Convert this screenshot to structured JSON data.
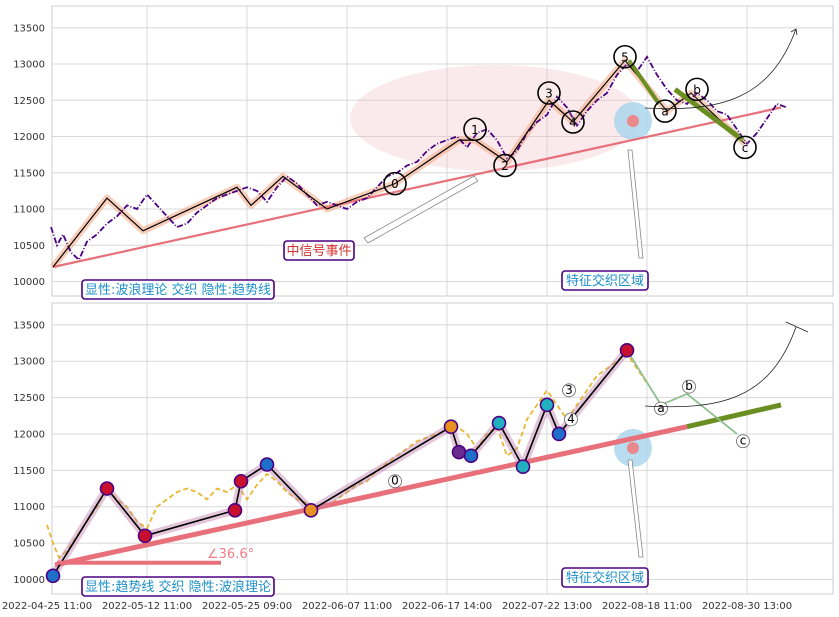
{
  "chart_data": [
    {
      "type": "line",
      "panel": "top",
      "title": "",
      "xlabel": "",
      "ylabel": "",
      "ylim": [
        9800,
        13800
      ],
      "yticks": [
        10000,
        10500,
        11000,
        11500,
        12000,
        12500,
        13000,
        13500
      ],
      "grid": true,
      "series": [
        {
          "style": "price-dashdot",
          "color": "#4b0082",
          "points": [
            [
              0.2,
              10750
            ],
            [
              0.5,
              10500
            ],
            [
              0.8,
              10650
            ],
            [
              1.2,
              10400
            ],
            [
              1.6,
              10300
            ],
            [
              2.0,
              10550
            ],
            [
              2.5,
              10650
            ],
            [
              3.0,
              10800
            ],
            [
              3.5,
              10900
            ],
            [
              4.0,
              11050
            ],
            [
              4.5,
              11000
            ],
            [
              5.0,
              11200
            ],
            [
              5.5,
              11050
            ],
            [
              6.0,
              10900
            ],
            [
              6.5,
              10750
            ],
            [
              7.0,
              10800
            ],
            [
              7.5,
              10950
            ],
            [
              8.0,
              11050
            ],
            [
              8.5,
              11150
            ],
            [
              9.0,
              11200
            ],
            [
              9.5,
              11250
            ],
            [
              10.0,
              11300
            ],
            [
              10.5,
              11250
            ],
            [
              11.0,
              11100
            ],
            [
              11.5,
              11300
            ],
            [
              12.0,
              11450
            ],
            [
              12.5,
              11350
            ],
            [
              13.0,
              11200
            ],
            [
              13.5,
              11050
            ],
            [
              14.0,
              11100
            ],
            [
              14.5,
              11050
            ],
            [
              15.0,
              11000
            ],
            [
              15.5,
              11100
            ],
            [
              16.0,
              11150
            ],
            [
              16.5,
              11300
            ],
            [
              17.0,
              11450
            ],
            [
              17.5,
              11500
            ],
            [
              18.0,
              11600
            ],
            [
              18.5,
              11650
            ],
            [
              19.0,
              11800
            ],
            [
              19.5,
              11900
            ],
            [
              20.0,
              11950
            ],
            [
              20.5,
              12000
            ],
            [
              21.0,
              11850
            ],
            [
              21.5,
              12050
            ],
            [
              22.0,
              12100
            ],
            [
              22.5,
              11950
            ],
            [
              23.0,
              11700
            ],
            [
              23.5,
              11800
            ],
            [
              24.0,
              12050
            ],
            [
              24.5,
              12200
            ],
            [
              25.0,
              12300
            ],
            [
              25.5,
              12550
            ],
            [
              26.0,
              12400
            ],
            [
              26.5,
              12150
            ],
            [
              27.0,
              12350
            ],
            [
              27.5,
              12500
            ],
            [
              28.0,
              12600
            ],
            [
              28.5,
              12850
            ],
            [
              29.0,
              13000
            ],
            [
              29.5,
              12900
            ],
            [
              30.0,
              13100
            ],
            [
              30.5,
              12850
            ],
            [
              31.0,
              12650
            ],
            [
              31.5,
              12500
            ],
            [
              32.0,
              12450
            ],
            [
              32.5,
              12600
            ],
            [
              33.0,
              12500
            ],
            [
              33.5,
              12350
            ],
            [
              34.0,
              12300
            ],
            [
              34.5,
              12100
            ],
            [
              35.0,
              11900
            ],
            [
              35.5,
              12050
            ],
            [
              36.0,
              12250
            ],
            [
              36.5,
              12450
            ],
            [
              37.0,
              12400
            ]
          ]
        },
        {
          "style": "trend-line",
          "color": "#e8707a",
          "points": [
            [
              0.3,
              10200
            ],
            [
              36.7,
              12400
            ]
          ]
        },
        {
          "style": "wave-line",
          "color": "#000000",
          "points": [
            [
              0.3,
              10200
            ],
            [
              3.0,
              11150
            ],
            [
              4.8,
              10700
            ],
            [
              9.5,
              11300
            ],
            [
              10.2,
              11050
            ],
            [
              11.8,
              11450
            ],
            [
              14.0,
              11000
            ],
            [
              17.4,
              11350
            ],
            [
              20.6,
              11950
            ],
            [
              21.4,
              11950
            ],
            [
              23.0,
              11650
            ],
            [
              25.1,
              12500
            ],
            [
              26.3,
              12200
            ],
            [
              28.9,
              13050
            ],
            [
              31.0,
              12350
            ],
            [
              32.2,
              12600
            ],
            [
              34.9,
              11900
            ]
          ]
        }
      ],
      "wave_points": [
        {
          "label": "0",
          "x": 17.4,
          "y": 11350
        },
        {
          "label": "1",
          "x": 21.4,
          "y": 12100
        },
        {
          "label": "2",
          "x": 22.9,
          "y": 11600
        },
        {
          "label": "3",
          "x": 25.1,
          "y": 12600
        },
        {
          "label": "4",
          "x": 26.3,
          "y": 12200
        },
        {
          "label": "5",
          "x": 28.9,
          "y": 13100
        },
        {
          "label": "a",
          "x": 30.9,
          "y": 12350
        },
        {
          "label": "b",
          "x": 32.5,
          "y": 12650
        },
        {
          "label": "c",
          "x": 34.9,
          "y": 11850
        }
      ],
      "annotations": {
        "signal_event": "中信号事件",
        "interlace_zone": "特征交织区域",
        "corner_label": "显性:波浪理论 交织 隐性:趋势线"
      }
    },
    {
      "type": "line",
      "panel": "bottom",
      "title": "",
      "xlabel": "",
      "ylabel": "",
      "ylim": [
        9800,
        13800
      ],
      "yticks": [
        10000,
        10500,
        11000,
        11500,
        12000,
        12500,
        13000,
        13500
      ],
      "grid": true,
      "xticks": [
        "2022-04-25 11:00",
        "2022-05-12 11:00",
        "2022-05-25 09:00",
        "2022-06-07 11:00",
        "2022-06-17 14:00",
        "2022-07-22 13:00",
        "2022-08-18 11:00",
        "2022-08-30 13:00"
      ],
      "series": [
        {
          "style": "price-dashed",
          "color": "#e8b830",
          "points": [
            [
              0.0,
              10750
            ],
            [
              0.3,
              10500
            ],
            [
              0.6,
              10300
            ],
            [
              1.0,
              10400
            ],
            [
              1.5,
              10600
            ],
            [
              2.0,
              10800
            ],
            [
              2.5,
              11000
            ],
            [
              3.0,
              11250
            ],
            [
              3.5,
              11100
            ],
            [
              4.0,
              11000
            ],
            [
              4.5,
              10800
            ],
            [
              5.0,
              10700
            ],
            [
              5.5,
              11000
            ],
            [
              6.0,
              11100
            ],
            [
              6.5,
              11200
            ],
            [
              7.0,
              11250
            ],
            [
              7.5,
              11200
            ],
            [
              8.0,
              11100
            ],
            [
              8.5,
              11250
            ],
            [
              9.0,
              11200
            ],
            [
              9.5,
              11300
            ],
            [
              10.0,
              11100
            ],
            [
              10.5,
              11300
            ],
            [
              11.0,
              11450
            ],
            [
              11.5,
              11350
            ],
            [
              12.0,
              11200
            ],
            [
              12.5,
              11100
            ],
            [
              13.0,
              11050
            ],
            [
              13.5,
              11000
            ],
            [
              14.0,
              11000
            ],
            [
              14.5,
              11100
            ],
            [
              15.0,
              11200
            ],
            [
              15.5,
              11300
            ],
            [
              16.0,
              11350
            ],
            [
              16.5,
              11500
            ],
            [
              17.0,
              11600
            ],
            [
              17.5,
              11700
            ],
            [
              18.0,
              11800
            ],
            [
              18.5,
              11900
            ],
            [
              19.0,
              11950
            ],
            [
              19.5,
              12000
            ],
            [
              20.0,
              12050
            ],
            [
              20.5,
              12100
            ],
            [
              21.0,
              12000
            ],
            [
              21.5,
              11800
            ],
            [
              22.0,
              12000
            ],
            [
              22.5,
              12100
            ],
            [
              23.0,
              11700
            ],
            [
              23.5,
              11800
            ],
            [
              24.0,
              12200
            ],
            [
              24.5,
              12400
            ],
            [
              25.0,
              12600
            ],
            [
              25.5,
              12400
            ],
            [
              26.0,
              12200
            ],
            [
              26.5,
              12400
            ],
            [
              27.0,
              12600
            ],
            [
              27.5,
              12800
            ],
            [
              28.0,
              12900
            ],
            [
              28.5,
              13000
            ],
            [
              29.0,
              13100
            ],
            [
              29.5,
              12900
            ],
            [
              30.0,
              12700
            ]
          ]
        },
        {
          "style": "trend-line",
          "color": "#e8707a",
          "points": [
            [
              0.4,
              10200
            ],
            [
              32.0,
              12100
            ]
          ]
        },
        {
          "style": "trend-line-green",
          "color": "#6b8e23",
          "points": [
            [
              32.0,
              12100
            ],
            [
              36.7,
              12400
            ]
          ]
        },
        {
          "style": "wave-line",
          "color": "#000000",
          "points": [
            [
              0.3,
              10050
            ],
            [
              3.0,
              11250
            ],
            [
              4.9,
              10600
            ],
            [
              9.4,
              10950
            ],
            [
              9.7,
              11350
            ],
            [
              11.0,
              11580
            ],
            [
              13.2,
              10950
            ],
            [
              20.2,
              12100
            ],
            [
              20.6,
              11750
            ],
            [
              21.2,
              11700
            ],
            [
              22.6,
              12150
            ],
            [
              23.8,
              11550
            ],
            [
              25.0,
              12400
            ],
            [
              25.6,
              12000
            ],
            [
              29.0,
              13150
            ]
          ]
        },
        {
          "style": "wave-line-faded",
          "color": "#8fbf8f",
          "points": [
            [
              29.0,
              13150
            ],
            [
              30.7,
              12400
            ],
            [
              32.0,
              12550
            ],
            [
              34.5,
              12000
            ]
          ]
        }
      ],
      "wave_points": [
        {
          "label": "0",
          "x": 17.4,
          "y": 11350
        },
        {
          "label": "3",
          "x": 26.1,
          "y": 12600
        },
        {
          "label": "4",
          "x": 26.2,
          "y": 12200
        },
        {
          "label": "a",
          "x": 30.7,
          "y": 12350
        },
        {
          "label": "b",
          "x": 32.1,
          "y": 12650
        },
        {
          "label": "c",
          "x": 34.8,
          "y": 11900
        }
      ],
      "trend_angle": "∠36.6°",
      "annotations": {
        "interlace_zone": "特征交织区域",
        "corner_label": "显性:趋势线 交织 隐性:波浪理论"
      }
    }
  ],
  "colors": {
    "accent_purple": "#4b0082",
    "box_text": "#1e90c8",
    "signal_text": "#d0302f",
    "trend": "#e8707a",
    "green": "#6b8e23",
    "highlight": "#f4c2c8",
    "zone": "#a8d4ec"
  }
}
